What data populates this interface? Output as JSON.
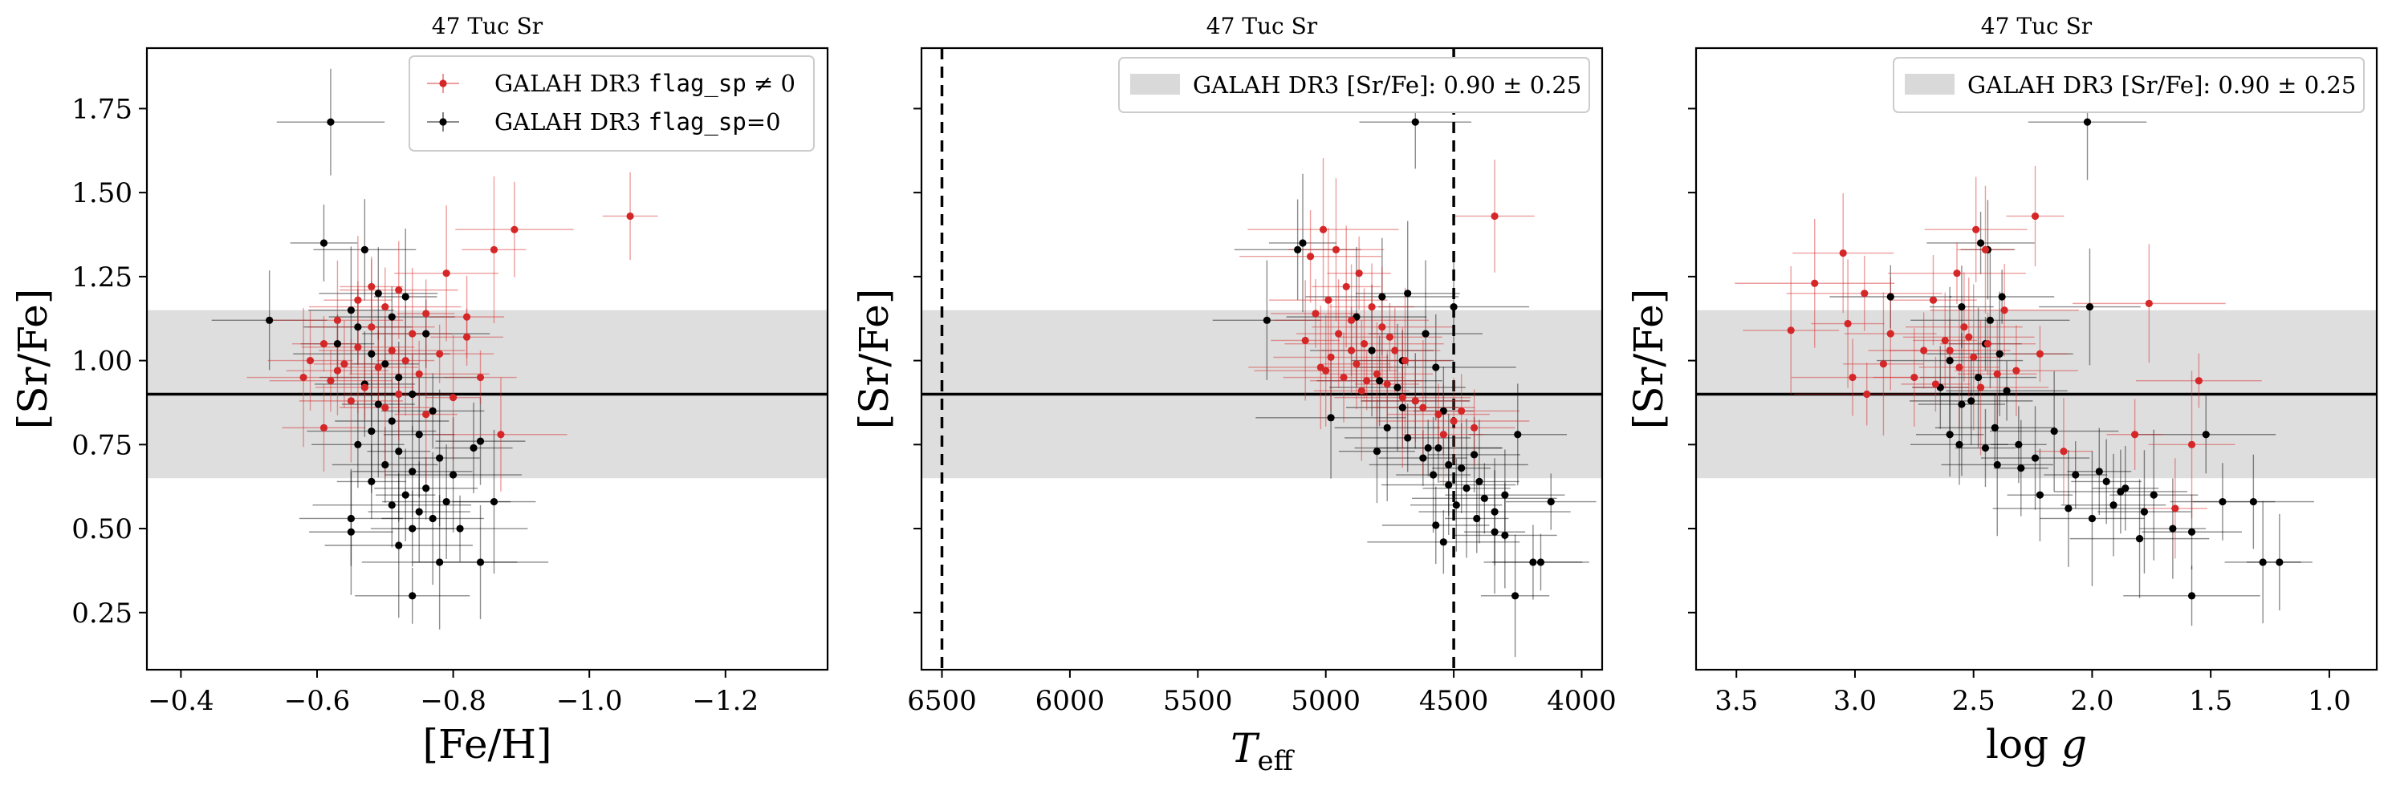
{
  "chart_data": [
    {
      "type": "scatter",
      "title": "47 Tuc Sr",
      "xlabel": "[Fe/H]",
      "ylabel": "[Sr/Fe]",
      "xlim": [
        -0.35,
        -1.35
      ],
      "ylim": [
        0.08,
        1.93
      ],
      "x_ticks": [
        "−0.4",
        "−0.6",
        "−0.8",
        "−1.0",
        "−1.2"
      ],
      "y_ticks": [
        "0.25",
        "0.50",
        "0.75",
        "1.00",
        "1.25",
        "1.50",
        "1.75"
      ],
      "reference_line": 0.9,
      "band": [
        0.65,
        1.15
      ],
      "legend_position": "top-right",
      "legend": [
        {
          "text": "GALAH DR3 flag_sp ≠ 0",
          "color": "#d62728"
        },
        {
          "text": "GALAH DR3 flag_sp=0",
          "color": "#000000"
        }
      ],
      "series": [
        {
          "name": "GALAH DR3 flag_sp ≠ 0",
          "color": "#d62728",
          "points": [
            [
              -1.06,
              1.43
            ],
            [
              -0.89,
              1.39
            ],
            [
              -0.86,
              1.33
            ],
            [
              -0.79,
              1.26
            ],
            [
              -0.72,
              1.21
            ],
            [
              -0.66,
              1.18
            ],
            [
              -0.7,
              1.16
            ],
            [
              -0.76,
              1.14
            ],
            [
              -0.63,
              1.12
            ],
            [
              -0.68,
              1.1
            ],
            [
              -0.74,
              1.08
            ],
            [
              -0.82,
              1.07
            ],
            [
              -0.61,
              1.05
            ],
            [
              -0.66,
              1.04
            ],
            [
              -0.71,
              1.03
            ],
            [
              -0.78,
              1.02
            ],
            [
              -0.59,
              1.0
            ],
            [
              -0.64,
              0.99
            ],
            [
              -0.69,
              0.98
            ],
            [
              -0.75,
              0.96
            ],
            [
              -0.84,
              0.95
            ],
            [
              -0.62,
              0.94
            ],
            [
              -0.67,
              0.92
            ],
            [
              -0.72,
              0.9
            ],
            [
              -0.8,
              0.89
            ],
            [
              -0.65,
              0.88
            ],
            [
              -0.7,
              0.86
            ],
            [
              -0.87,
              0.78
            ],
            [
              -0.61,
              0.8
            ],
            [
              -0.76,
              0.84
            ],
            [
              -0.68,
              1.22
            ],
            [
              -0.82,
              1.13
            ],
            [
              -0.73,
              1.0
            ],
            [
              -0.63,
              0.97
            ],
            [
              -0.58,
              0.95
            ]
          ]
        },
        {
          "name": "GALAH DR3 flag_sp=0",
          "color": "#000000",
          "points": [
            [
              -0.62,
              1.71
            ],
            [
              -0.61,
              1.35
            ],
            [
              -0.67,
              1.33
            ],
            [
              -0.73,
              1.19
            ],
            [
              -0.69,
              1.2
            ],
            [
              -0.65,
              1.15
            ],
            [
              -0.71,
              1.13
            ],
            [
              -0.66,
              1.1
            ],
            [
              -0.76,
              1.08
            ],
            [
              -0.53,
              1.12
            ],
            [
              -0.63,
              1.05
            ],
            [
              -0.68,
              1.02
            ],
            [
              -0.7,
              0.99
            ],
            [
              -0.72,
              0.95
            ],
            [
              -0.67,
              0.93
            ],
            [
              -0.74,
              0.9
            ],
            [
              -0.69,
              0.87
            ],
            [
              -0.77,
              0.85
            ],
            [
              -0.71,
              0.82
            ],
            [
              -0.75,
              0.78
            ],
            [
              -0.66,
              0.75
            ],
            [
              -0.72,
              0.73
            ],
            [
              -0.78,
              0.71
            ],
            [
              -0.7,
              0.69
            ],
            [
              -0.74,
              0.67
            ],
            [
              -0.8,
              0.66
            ],
            [
              -0.68,
              0.64
            ],
            [
              -0.76,
              0.62
            ],
            [
              -0.73,
              0.6
            ],
            [
              -0.79,
              0.58
            ],
            [
              -0.71,
              0.57
            ],
            [
              -0.75,
              0.55
            ],
            [
              -0.77,
              0.53
            ],
            [
              -0.65,
              0.53
            ],
            [
              -0.74,
              0.5
            ],
            [
              -0.81,
              0.5
            ],
            [
              -0.65,
              0.49
            ],
            [
              -0.72,
              0.45
            ],
            [
              -0.78,
              0.4
            ],
            [
              -0.84,
              0.4
            ],
            [
              -0.74,
              0.3
            ],
            [
              -0.84,
              0.76
            ],
            [
              -0.83,
              0.74
            ],
            [
              -0.68,
              0.79
            ],
            [
              -0.86,
              0.58
            ]
          ]
        }
      ]
    },
    {
      "type": "scatter",
      "title": "47 Tuc Sr",
      "xlabel": "T_eff",
      "ylabel": "[Sr/Fe]",
      "xlim": [
        6580,
        3920
      ],
      "ylim": [
        0.08,
        1.93
      ],
      "x_ticks": [
        "6500",
        "6000",
        "5500",
        "5000",
        "4500",
        "4000"
      ],
      "reference_line": 0.9,
      "band": [
        0.65,
        1.15
      ],
      "vertical_lines": [
        6500,
        4500
      ],
      "legend_position": "top-right",
      "legend": [
        {
          "text": "GALAH DR3 [Sr/Fe]: 0.90 ± 0.25",
          "color": "#d9d9d9"
        }
      ],
      "series": [
        {
          "name": "GALAH DR3 flag_sp ≠ 0",
          "color": "#d62728",
          "points": [
            [
              4340,
              1.43
            ],
            [
              5010,
              1.39
            ],
            [
              4960,
              1.33
            ],
            [
              5060,
              1.31
            ],
            [
              4870,
              1.26
            ],
            [
              4920,
              1.22
            ],
            [
              4990,
              1.18
            ],
            [
              4820,
              1.16
            ],
            [
              5040,
              1.14
            ],
            [
              4900,
              1.12
            ],
            [
              4780,
              1.1
            ],
            [
              4950,
              1.08
            ],
            [
              5080,
              1.06
            ],
            [
              4850,
              1.05
            ],
            [
              4730,
              1.03
            ],
            [
              4980,
              1.01
            ],
            [
              4880,
              0.99
            ],
            [
              5020,
              0.98
            ],
            [
              4800,
              0.96
            ],
            [
              4930,
              0.95
            ],
            [
              4760,
              0.93
            ],
            [
              4860,
              0.91
            ],
            [
              4700,
              0.89
            ],
            [
              4620,
              0.86
            ],
            [
              4560,
              0.84
            ],
            [
              4500,
              0.82
            ],
            [
              4420,
              0.8
            ],
            [
              4900,
              1.03
            ],
            [
              4690,
              1.0
            ],
            [
              5000,
              0.97
            ],
            [
              4840,
              0.94
            ],
            [
              4750,
              1.07
            ],
            [
              4650,
              0.88
            ],
            [
              4540,
              0.78
            ],
            [
              4470,
              0.85
            ]
          ]
        },
        {
          "name": "GALAH DR3 flag_sp=0",
          "color": "#000000",
          "points": [
            [
              4650,
              1.71
            ],
            [
              5090,
              1.35
            ],
            [
              5110,
              1.33
            ],
            [
              4780,
              1.19
            ],
            [
              4680,
              1.2
            ],
            [
              4500,
              1.16
            ],
            [
              5230,
              1.12
            ],
            [
              4880,
              1.13
            ],
            [
              4610,
              1.08
            ],
            [
              4820,
              1.03
            ],
            [
              4700,
              1.0
            ],
            [
              4570,
              0.98
            ],
            [
              4790,
              0.94
            ],
            [
              4720,
              0.92
            ],
            [
              4650,
              0.88
            ],
            [
              4980,
              0.83
            ],
            [
              4540,
              0.85
            ],
            [
              4760,
              0.8
            ],
            [
              4680,
              0.77
            ],
            [
              4560,
              0.74
            ],
            [
              4800,
              0.73
            ],
            [
              4620,
              0.71
            ],
            [
              4520,
              0.69
            ],
            [
              4470,
              0.68
            ],
            [
              4580,
              0.66
            ],
            [
              4400,
              0.64
            ],
            [
              4450,
              0.62
            ],
            [
              4300,
              0.6
            ],
            [
              4380,
              0.59
            ],
            [
              4490,
              0.57
            ],
            [
              4340,
              0.55
            ],
            [
              4410,
              0.53
            ],
            [
              4570,
              0.51
            ],
            [
              4250,
              0.78
            ],
            [
              4120,
              0.58
            ],
            [
              4340,
              0.49
            ],
            [
              4300,
              0.48
            ],
            [
              4540,
              0.46
            ],
            [
              4190,
              0.4
            ],
            [
              4160,
              0.4
            ],
            [
              4260,
              0.3
            ],
            [
              4600,
              0.74
            ],
            [
              4700,
              0.86
            ],
            [
              4420,
              0.72
            ],
            [
              4520,
              0.63
            ]
          ]
        }
      ]
    },
    {
      "type": "scatter",
      "title": "47 Tuc Sr",
      "xlabel": "log g",
      "ylabel": "[Sr/Fe]",
      "xlim": [
        3.67,
        0.8
      ],
      "ylim": [
        0.08,
        1.93
      ],
      "x_ticks": [
        "3.5",
        "3.0",
        "2.5",
        "2.0",
        "1.5",
        "1.0"
      ],
      "reference_line": 0.9,
      "band": [
        0.65,
        1.15
      ],
      "legend_position": "top-right",
      "legend": [
        {
          "text": "GALAH DR3 [Sr/Fe]: 0.90 ± 0.25",
          "color": "#d9d9d9"
        }
      ],
      "series": [
        {
          "name": "GALAH DR3 flag_sp ≠ 0",
          "color": "#d62728",
          "points": [
            [
              2.24,
              1.43
            ],
            [
              2.49,
              1.39
            ],
            [
              2.45,
              1.33
            ],
            [
              3.05,
              1.32
            ],
            [
              2.57,
              1.26
            ],
            [
              3.17,
              1.23
            ],
            [
              2.96,
              1.2
            ],
            [
              2.67,
              1.18
            ],
            [
              1.76,
              1.17
            ],
            [
              2.37,
              1.15
            ],
            [
              3.27,
              1.09
            ],
            [
              3.03,
              1.11
            ],
            [
              2.54,
              1.1
            ],
            [
              2.85,
              1.08
            ],
            [
              2.62,
              1.06
            ],
            [
              2.44,
              1.05
            ],
            [
              2.71,
              1.03
            ],
            [
              2.5,
              1.01
            ],
            [
              3.01,
              0.95
            ],
            [
              2.88,
              0.99
            ],
            [
              2.56,
              0.98
            ],
            [
              2.32,
              0.97
            ],
            [
              2.95,
              0.9
            ],
            [
              2.66,
              0.93
            ],
            [
              2.47,
              0.92
            ],
            [
              1.55,
              0.94
            ],
            [
              1.82,
              0.78
            ],
            [
              1.58,
              0.75
            ],
            [
              2.22,
              1.02
            ],
            [
              2.4,
              0.96
            ],
            [
              2.6,
              1.03
            ],
            [
              2.75,
              0.95
            ],
            [
              1.65,
              0.56
            ],
            [
              2.12,
              0.73
            ],
            [
              2.52,
              1.07
            ]
          ]
        },
        {
          "name": "GALAH DR3 flag_sp=0",
          "color": "#000000",
          "points": [
            [
              2.02,
              1.71
            ],
            [
              2.47,
              1.35
            ],
            [
              2.44,
              1.33
            ],
            [
              2.38,
              1.19
            ],
            [
              2.85,
              1.19
            ],
            [
              2.55,
              1.16
            ],
            [
              2.01,
              1.16
            ],
            [
              2.43,
              1.12
            ],
            [
              2.45,
              1.05
            ],
            [
              2.6,
              1.0
            ],
            [
              2.39,
              1.02
            ],
            [
              2.48,
              0.95
            ],
            [
              2.64,
              0.92
            ],
            [
              2.36,
              0.91
            ],
            [
              2.51,
              0.88
            ],
            [
              2.55,
              0.87
            ],
            [
              2.41,
              0.8
            ],
            [
              2.16,
              0.79
            ],
            [
              2.31,
              0.75
            ],
            [
              2.6,
              0.78
            ],
            [
              2.45,
              0.74
            ],
            [
              2.24,
              0.71
            ],
            [
              2.4,
              0.69
            ],
            [
              1.97,
              0.67
            ],
            [
              2.07,
              0.66
            ],
            [
              1.94,
              0.64
            ],
            [
              1.86,
              0.62
            ],
            [
              2.22,
              0.6
            ],
            [
              1.74,
              0.6
            ],
            [
              1.91,
              0.57
            ],
            [
              2.1,
              0.56
            ],
            [
              1.78,
              0.55
            ],
            [
              1.45,
              0.58
            ],
            [
              1.52,
              0.78
            ],
            [
              1.32,
              0.58
            ],
            [
              2.0,
              0.53
            ],
            [
              1.66,
              0.5
            ],
            [
              1.58,
              0.49
            ],
            [
              1.8,
              0.47
            ],
            [
              1.28,
              0.4
            ],
            [
              1.21,
              0.4
            ],
            [
              1.58,
              0.3
            ],
            [
              2.56,
              0.75
            ],
            [
              2.3,
              0.68
            ],
            [
              1.88,
              0.61
            ]
          ]
        }
      ]
    }
  ]
}
